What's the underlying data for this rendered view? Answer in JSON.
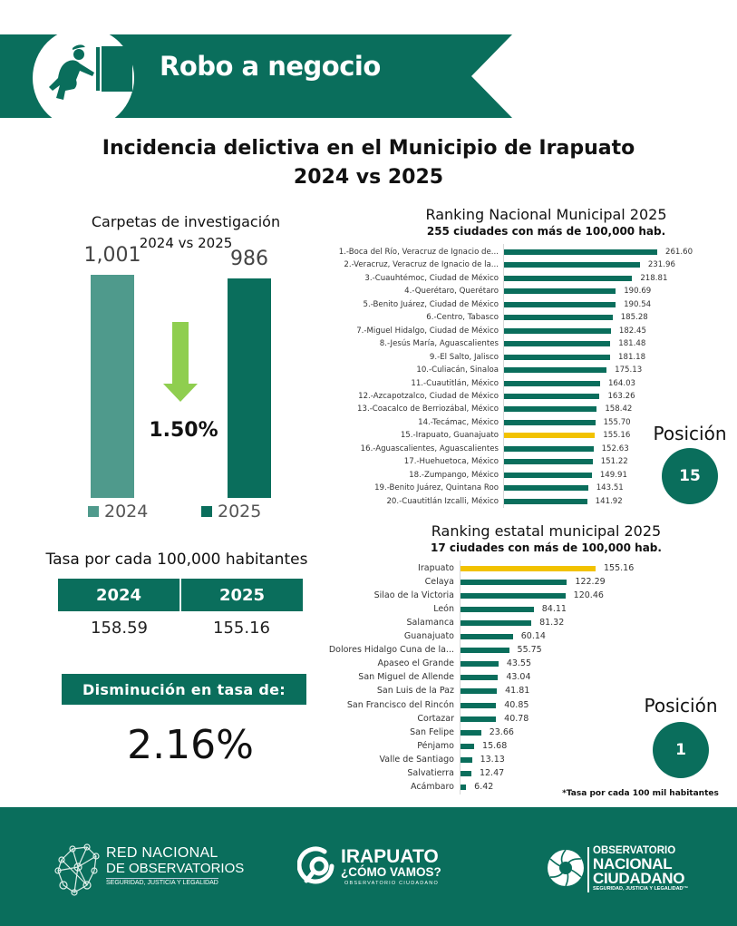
{
  "colors": {
    "primary": "#0a6e5c",
    "light_teal": "#4f9a8c",
    "highlight": "#f2c200",
    "arrow_green": "#8fce4f"
  },
  "header": {
    "icon": "thief-pushing-safe-icon",
    "title": "Robo a negocio"
  },
  "main_title": {
    "line1": "Incidencia delictiva en el Municipio de Irapuato",
    "line2": "2024 vs 2025"
  },
  "chart_data": [
    {
      "type": "bar",
      "title": "Carpetas de investigación",
      "subtitle": "2024 vs 2025",
      "categories": [
        "2024",
        "2025"
      ],
      "values": [
        1001,
        986
      ],
      "value_labels": [
        "1,001",
        "986"
      ],
      "ylim": [
        0,
        1001
      ],
      "change_label": "1.50%",
      "change_direction": "down",
      "legend": [
        "2024",
        "2025"
      ],
      "legend_position": "bottom"
    },
    {
      "type": "bar",
      "orientation": "horizontal",
      "title": "Ranking Nacional Municipal 2025",
      "subtitle": "255 ciudades con más de 100,000 hab.",
      "highlight_index": 14,
      "categories": [
        "1.-Boca del Río, Veracruz de Ignacio de...",
        "2.-Veracruz, Veracruz de Ignacio de la...",
        "3.-Cuauhtémoc, Ciudad de México",
        "4.-Querétaro, Querétaro",
        "5.-Benito Juárez, Ciudad de México",
        "6.-Centro, Tabasco",
        "7.-Miguel Hidalgo, Ciudad de México",
        "8.-Jesús María, Aguascalientes",
        "9.-El Salto, Jalisco",
        "10.-Culiacán, Sinaloa",
        "11.-Cuautitlán, México",
        "12.-Azcapotzalco, Ciudad de México",
        "13.-Coacalco de Berriozábal, México",
        "14.-Tecámac, México",
        "15.-Irapuato, Guanajuato",
        "16.-Aguascalientes, Aguascalientes",
        "17.-Huehuetoca, México",
        "18.-Zumpango, México",
        "19.-Benito Juárez, Quintana Roo",
        "20.-Cuautitlán Izcalli, México"
      ],
      "values": [
        261.6,
        231.96,
        218.81,
        190.69,
        190.54,
        185.28,
        182.45,
        181.48,
        181.18,
        175.13,
        164.03,
        163.26,
        158.42,
        155.7,
        155.16,
        152.63,
        151.22,
        149.91,
        143.51,
        141.92
      ],
      "value_labels": [
        "261.60",
        "231.96",
        "218.81",
        "190.69",
        "190.54",
        "185.28",
        "182.45",
        "181.48",
        "181.18",
        "175.13",
        "164.03",
        "163.26",
        "158.42",
        "155.70",
        "155.16",
        "152.63",
        "151.22",
        "149.91",
        "143.51",
        "141.92"
      ],
      "xlim": [
        0,
        261.6
      ]
    },
    {
      "type": "bar",
      "orientation": "horizontal",
      "title": "Ranking estatal municipal 2025",
      "subtitle": "17 ciudades con más de 100,000 hab.",
      "highlight_index": 0,
      "categories": [
        "Irapuato",
        "Celaya",
        "Silao de la Victoria",
        "León",
        "Salamanca",
        "Guanajuato",
        "Dolores Hidalgo Cuna de la...",
        "Apaseo el Grande",
        "San Miguel de Allende",
        "San Luis de la Paz",
        "San Francisco del Rincón",
        "Cortazar",
        "San Felipe",
        "Pénjamo",
        "Valle de Santiago",
        "Salvatierra",
        "Acámbaro"
      ],
      "values": [
        155.16,
        122.29,
        120.46,
        84.11,
        81.32,
        60.14,
        55.75,
        43.55,
        43.04,
        41.81,
        40.85,
        40.78,
        23.66,
        15.68,
        13.13,
        12.47,
        6.42
      ],
      "value_labels": [
        "155.16",
        "122.29",
        "120.46",
        "84.11",
        "81.32",
        "60.14",
        "55.75",
        "43.55",
        "43.04",
        "41.81",
        "40.85",
        "40.78",
        "23.66",
        "15.68",
        "13.13",
        "12.47",
        "6.42"
      ],
      "xlim": [
        0,
        155.16
      ]
    }
  ],
  "national_position": {
    "label": "Posición",
    "value": "15"
  },
  "state_position": {
    "label": "Posición",
    "value": "1"
  },
  "tasa": {
    "title": "Tasa por cada 100,000 habitantes",
    "headers": [
      "2024",
      "2025"
    ],
    "values": [
      "158.59",
      "155.16"
    ]
  },
  "disminucion": {
    "label": "Disminución en tasa de:",
    "value": "2.16%"
  },
  "note": "*Tasa por cada 100 mil habitantes",
  "footer": {
    "logo1": {
      "icon": "network-nodes-icon",
      "line1": "RED NACIONAL",
      "line2": "DE OBSERVATORIOS",
      "line3": "SEGURIDAD, JUSTICIA Y LEGALIDAD"
    },
    "logo2": {
      "icon": "irapuato-circle-icon",
      "line1": "IRAPUATO",
      "line2": "¿CÓMO VAMOS?",
      "line3": "OBSERVATORIO CIUDADANO"
    },
    "logo3": {
      "icon": "aperture-spiral-icon",
      "line1": "OBSERVATORIO",
      "line2": "NACIONAL",
      "line3": "CIUDADANO",
      "line4": "SEGURIDAD, JUSTICIA Y LEGALIDAD™"
    }
  }
}
